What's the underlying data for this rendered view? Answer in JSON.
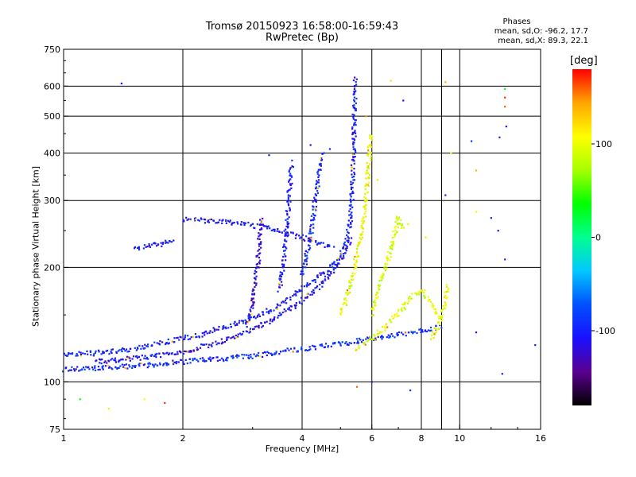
{
  "chart_data": {
    "type": "scatter",
    "title": "Tromsø 20150923 16:58:00-16:59:43",
    "subtitle": "RwPretec (Bp)",
    "xlabel": "Frequency [MHz]",
    "ylabel": "Stationary phase Virtual Height [km]",
    "x_scale": "log",
    "y_scale": "log",
    "xlim": [
      1,
      16
    ],
    "ylim": [
      75,
      750
    ],
    "x_ticks": [
      1,
      2,
      4,
      6,
      8,
      10,
      16
    ],
    "x_tick_labels": [
      "1",
      "2",
      "4",
      "6",
      "8",
      "10",
      "16"
    ],
    "x_grid": [
      2,
      4,
      6,
      8,
      10
    ],
    "x_minor_grid": [
      9
    ],
    "y_ticks": [
      75,
      100,
      200,
      300,
      400,
      500,
      600,
      750
    ],
    "y_tick_labels": [
      "75",
      "100",
      "200",
      "300",
      "400",
      "500",
      "600",
      "750"
    ],
    "y_grid": [
      100,
      200,
      300,
      400,
      500,
      600
    ],
    "grid": true,
    "colorbar": {
      "label": "[deg]",
      "min": -180,
      "max": 180,
      "ticks": [
        100,
        0,
        -100
      ],
      "tick_labels": [
        "100",
        "0",
        "-100"
      ],
      "stops": [
        "#000000",
        "#5a0090",
        "#1a10ff",
        "#0050ff",
        "#00c8ff",
        "#00ff90",
        "#00ff00",
        "#a8ff00",
        "#ffff00",
        "#ffa500",
        "#ff0000"
      ]
    },
    "phases": {
      "title": "Phases",
      "o_line": "mean, sd,O: -96.2, 17.7",
      "x_line": "mean, sd,X: 89.3, 22.1"
    },
    "traces": [
      {
        "name": "",
        "phase": -100,
        "points": [
          [
            1.0,
            118
          ],
          [
            1.2,
            119
          ],
          [
            1.5,
            122
          ],
          [
            1.8,
            127
          ],
          [
            2.2,
            133
          ],
          [
            2.6,
            140
          ],
          [
            3.0,
            148
          ],
          [
            3.4,
            156
          ],
          [
            3.8,
            168
          ],
          [
            4.2,
            182
          ],
          [
            4.6,
            196
          ],
          [
            5.0,
            215
          ],
          [
            5.2,
            240
          ],
          [
            5.3,
            270
          ],
          [
            5.35,
            320
          ],
          [
            5.4,
            400
          ],
          [
            5.42,
            500
          ],
          [
            5.45,
            630
          ]
        ]
      },
      {
        "name": "",
        "phase": -95,
        "points": [
          [
            1.0,
            108
          ],
          [
            1.3,
            109
          ],
          [
            1.7,
            111
          ],
          [
            2.0,
            113
          ],
          [
            2.5,
            115
          ],
          [
            3.0,
            117
          ],
          [
            3.5,
            120
          ],
          [
            4.0,
            122
          ],
          [
            4.5,
            124
          ],
          [
            5.0,
            126
          ],
          [
            5.5,
            128
          ],
          [
            6.0,
            130
          ],
          [
            6.6,
            132
          ],
          [
            7.2,
            134
          ],
          [
            8.0,
            136
          ],
          [
            9.0,
            140
          ]
        ]
      },
      {
        "name": "",
        "phase": -110,
        "points": [
          [
            1.2,
            113
          ],
          [
            1.6,
            116
          ],
          [
            2.0,
            120
          ],
          [
            2.4,
            126
          ],
          [
            2.8,
            133
          ],
          [
            3.2,
            142
          ],
          [
            3.6,
            152
          ],
          [
            4.0,
            164
          ],
          [
            4.4,
            178
          ],
          [
            4.8,
            196
          ],
          [
            5.1,
            215
          ],
          [
            5.3,
            240
          ]
        ]
      },
      {
        "name": "",
        "phase": -105,
        "points": [
          [
            2.0,
            268
          ],
          [
            2.3,
            265
          ],
          [
            2.7,
            262
          ],
          [
            3.0,
            258
          ],
          [
            3.3,
            254
          ],
          [
            3.6,
            248
          ],
          [
            4.0,
            240
          ],
          [
            4.4,
            232
          ],
          [
            4.8,
            226
          ]
        ]
      },
      {
        "name": "",
        "phase": -100,
        "points": [
          [
            1.5,
            225
          ],
          [
            1.65,
            228
          ],
          [
            1.8,
            232
          ],
          [
            1.9,
            235
          ]
        ]
      },
      {
        "name": "",
        "phase": -120,
        "points": [
          [
            2.9,
            140
          ],
          [
            3.0,
            160
          ],
          [
            3.05,
            185
          ],
          [
            3.1,
            210
          ],
          [
            3.12,
            240
          ],
          [
            3.15,
            270
          ]
        ]
      },
      {
        "name": "",
        "phase": -100,
        "points": [
          [
            3.5,
            175
          ],
          [
            3.6,
            210
          ],
          [
            3.65,
            250
          ],
          [
            3.7,
            300
          ],
          [
            3.75,
            360
          ],
          [
            3.8,
            380
          ]
        ]
      },
      {
        "name": "",
        "phase": -95,
        "points": [
          [
            4.0,
            190
          ],
          [
            4.2,
            240
          ],
          [
            4.3,
            290
          ],
          [
            4.4,
            350
          ],
          [
            4.5,
            400
          ]
        ]
      },
      {
        "name": "",
        "phase": 100,
        "points": [
          [
            5.0,
            150
          ],
          [
            5.3,
            180
          ],
          [
            5.5,
            215
          ],
          [
            5.7,
            260
          ],
          [
            5.8,
            310
          ],
          [
            5.9,
            380
          ],
          [
            5.95,
            450
          ]
        ]
      },
      {
        "name": "",
        "phase": 95,
        "points": [
          [
            5.5,
            122
          ],
          [
            6.0,
            130
          ],
          [
            6.5,
            140
          ],
          [
            7.0,
            152
          ],
          [
            7.5,
            165
          ],
          [
            8.0,
            175
          ],
          [
            8.5,
            160
          ],
          [
            9.0,
            145
          ]
        ]
      },
      {
        "name": "",
        "phase": 90,
        "points": [
          [
            6.0,
            150
          ],
          [
            6.3,
            180
          ],
          [
            6.6,
            210
          ],
          [
            6.8,
            240
          ],
          [
            7.0,
            270
          ],
          [
            7.2,
            250
          ]
        ]
      },
      {
        "name": "",
        "phase": 100,
        "points": [
          [
            8.5,
            130
          ],
          [
            8.8,
            140
          ],
          [
            9.0,
            150
          ],
          [
            9.2,
            165
          ],
          [
            9.3,
            180
          ]
        ]
      }
    ],
    "isolated_points": [
      [
        1.4,
        610,
        -105
      ],
      [
        3.3,
        395,
        -100
      ],
      [
        4.2,
        420,
        -110
      ],
      [
        4.7,
        410,
        -100
      ],
      [
        5.8,
        500,
        150
      ],
      [
        6.7,
        620,
        120
      ],
      [
        7.2,
        550,
        -110
      ],
      [
        6.2,
        340,
        90
      ],
      [
        7.4,
        260,
        100
      ],
      [
        8.2,
        240,
        90
      ],
      [
        9.2,
        310,
        -100
      ],
      [
        9.5,
        400,
        110
      ],
      [
        10.7,
        430,
        -90
      ],
      [
        11.0,
        360,
        140
      ],
      [
        11.0,
        280,
        100
      ],
      [
        12.0,
        270,
        -100
      ],
      [
        12.5,
        250,
        -110
      ],
      [
        13.0,
        210,
        -100
      ],
      [
        13.0,
        590,
        30
      ],
      [
        13.0,
        560,
        170
      ],
      [
        13.0,
        530,
        160
      ],
      [
        13.1,
        470,
        -110
      ],
      [
        12.6,
        440,
        -100
      ],
      [
        11.0,
        135,
        -110
      ],
      [
        12.8,
        105,
        -100
      ],
      [
        15.5,
        125,
        -100
      ],
      [
        9.2,
        615,
        140
      ],
      [
        7.5,
        95,
        -90
      ],
      [
        6.0,
        100,
        -100
      ],
      [
        5.5,
        97,
        160
      ],
      [
        1.3,
        85,
        90
      ],
      [
        1.1,
        90,
        30
      ],
      [
        1.6,
        90,
        110
      ],
      [
        1.8,
        88,
        170
      ]
    ]
  }
}
